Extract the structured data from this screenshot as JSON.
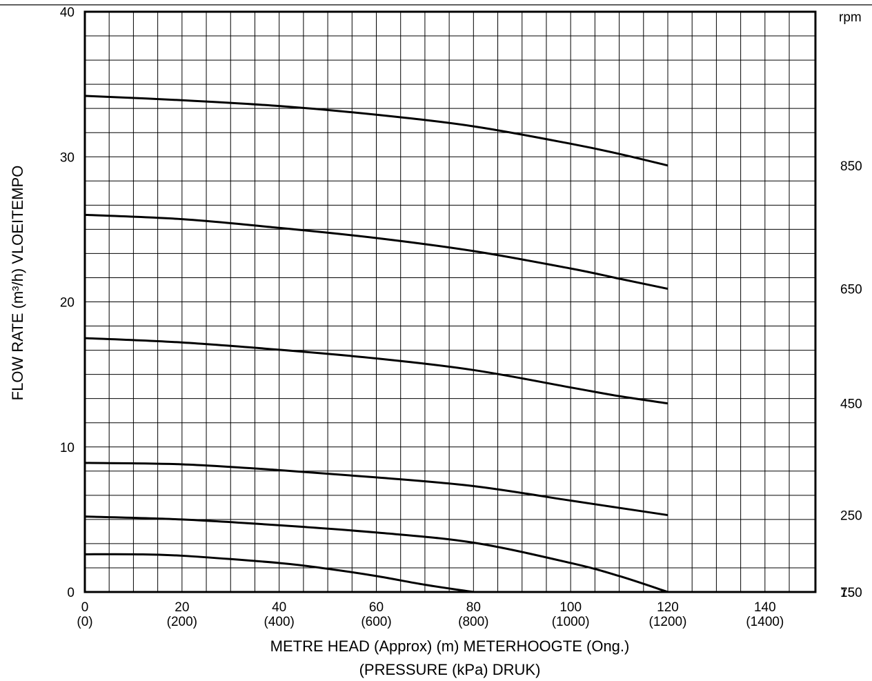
{
  "chart_data": {
    "type": "line",
    "title": "",
    "ylabel": "FLOW RATE (m³/h) VLOEITEMPO",
    "xlabel": "METRE HEAD (Approx) (m) METERHOOGTE (Ong.)",
    "xlabel2": "(PRESSURE (kPa) DRUK)",
    "xlim": [
      0,
      150
    ],
    "ylim": [
      0,
      40
    ],
    "grid": true,
    "x_ticks": [
      {
        "value": 0,
        "label": "0",
        "sub": "(0)"
      },
      {
        "value": 20,
        "label": "20",
        "sub": "(200)"
      },
      {
        "value": 40,
        "label": "40",
        "sub": "(400)"
      },
      {
        "value": 60,
        "label": "60",
        "sub": "(600)"
      },
      {
        "value": 80,
        "label": "80",
        "sub": "(800)"
      },
      {
        "value": 100,
        "label": "100",
        "sub": "(1000)"
      },
      {
        "value": 120,
        "label": "120",
        "sub": "(1200)"
      },
      {
        "value": 140,
        "label": "140",
        "sub": "(1400)"
      }
    ],
    "y_ticks": [
      {
        "value": 0,
        "label": "0"
      },
      {
        "value": 10,
        "label": "10"
      },
      {
        "value": 20,
        "label": "20"
      },
      {
        "value": 30,
        "label": "30"
      },
      {
        "value": 40,
        "label": "40"
      }
    ],
    "right_axis_title": "rpm",
    "rpm_labels": [
      {
        "label": "850",
        "y": 29.4
      },
      {
        "label": "650",
        "y": 20.9
      },
      {
        "label": "450",
        "y": 13.0
      },
      {
        "label": "250",
        "y": 5.3
      },
      {
        "label": "150",
        "y": 0
      },
      {
        "label": "75",
        "y": 0
      }
    ],
    "series": [
      {
        "x": [
          0,
          20,
          40,
          60,
          80,
          100,
          110,
          120
        ],
        "y": [
          34.2,
          33.9,
          33.5,
          32.9,
          32.1,
          30.9,
          30.2,
          29.4
        ]
      },
      {
        "x": [
          0,
          20,
          40,
          60,
          80,
          100,
          110,
          120
        ],
        "y": [
          26.0,
          25.7,
          25.1,
          24.4,
          23.5,
          22.3,
          21.6,
          20.9
        ]
      },
      {
        "x": [
          0,
          20,
          40,
          60,
          80,
          100,
          110,
          120
        ],
        "y": [
          17.5,
          17.2,
          16.7,
          16.1,
          15.3,
          14.1,
          13.5,
          13.0
        ]
      },
      {
        "x": [
          0,
          20,
          40,
          60,
          80,
          100,
          110,
          120
        ],
        "y": [
          8.9,
          8.8,
          8.4,
          7.9,
          7.3,
          6.3,
          5.8,
          5.3
        ]
      },
      {
        "x": [
          0,
          20,
          40,
          60,
          80,
          100,
          110,
          120
        ],
        "y": [
          5.2,
          5.0,
          4.6,
          4.1,
          3.4,
          2.0,
          1.1,
          0.0
        ]
      },
      {
        "x": [
          0,
          10,
          20,
          40,
          50,
          60,
          70,
          80
        ],
        "y": [
          2.6,
          2.6,
          2.5,
          2.0,
          1.6,
          1.1,
          0.5,
          0.0
        ]
      }
    ]
  }
}
